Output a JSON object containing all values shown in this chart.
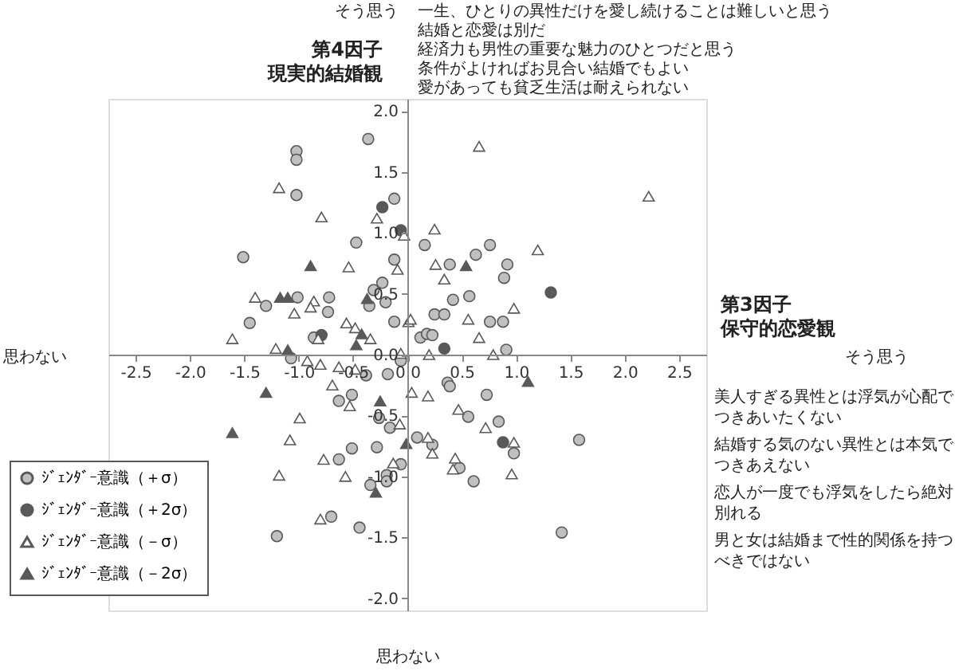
{
  "chart_data": {
    "type": "scatter",
    "xlabel": "保守的恋愛観",
    "ylabel": "現実的結婚観",
    "xlim": [
      -2.75,
      2.75
    ],
    "ylim": [
      -2.1,
      2.1
    ],
    "xticks": [
      {
        "value": -2.5,
        "label": "-2.5"
      },
      {
        "value": -2,
        "label": "-2.0"
      },
      {
        "value": -1.5,
        "label": "-1.5"
      },
      {
        "value": -1,
        "label": "-1.0"
      },
      {
        "value": -0.5,
        "label": "-0.5"
      },
      {
        "value": 0,
        "label": "0.0"
      },
      {
        "value": 0.5,
        "label": "0.5"
      },
      {
        "value": 1,
        "label": "1.0"
      },
      {
        "value": 1.5,
        "label": "1.5"
      },
      {
        "value": 2,
        "label": "2.0"
      },
      {
        "value": 2.5,
        "label": "2.5"
      }
    ],
    "yticks": [
      {
        "value": -2,
        "label": "-2.0"
      },
      {
        "value": -1.5,
        "label": "-1.5"
      },
      {
        "value": -1,
        "label": "-1.0"
      },
      {
        "value": -0.5,
        "label": "-0.5"
      },
      {
        "value": 0,
        "label": "0.0"
      },
      {
        "value": 0.5,
        "label": "0.5"
      },
      {
        "value": 1,
        "label": "1.0"
      },
      {
        "value": 1.5,
        "label": "1.5"
      },
      {
        "value": 2,
        "label": "2.0"
      }
    ],
    "grid": false,
    "legend": "bottom left",
    "annotations": [
      "そう思う",
      "思わない",
      "そう思う",
      "思わない",
      "一生、ひとりの異性だけを愛し続けることは難しいと思う",
      "結婚と恋愛は別だ",
      "経済力も男性の重要な魅力のひとつだと思う",
      "条件がよければお見合い結婚でもよい",
      "愛があっても貧乏生活は耐えられない",
      "美人すぎる異性とは浮気が心配でつきあいたくない",
      "結婚する気のない異性とは本気でつきあえない",
      "恋人が一度でも浮気をしたら絶対別れる",
      "男と女は結婚まで性的関係を持つべきではない",
      "第4因子",
      "第3因子"
    ],
    "series": [
      {
        "name": "ｼﾞｪﾝﾀﾞｰ意識（＋σ）",
        "color": "#c0c0c0",
        "marker": "circle",
        "x": [
          -0.36,
          -1.02,
          -1.02,
          -1.02,
          -0.12,
          -0.47,
          -1.51,
          -0.12,
          -0.23,
          -0.31,
          -1.3,
          -1.01,
          -0.72,
          -0.73,
          -0.35,
          -0.2,
          -1.45,
          -0.12,
          -0.86,
          -1.07,
          -0.38,
          -0.18,
          -0.51,
          -0.63,
          -0.26,
          -0.16,
          -0.06,
          0.16,
          0.76,
          0.63,
          0.39,
          0.92,
          0.89,
          0.57,
          0.42,
          0.25,
          0.34,
          0.76,
          0.88,
          0.12,
          0.18,
          0.23,
          0.91,
          0.37,
          0.39,
          0.73,
          0.56,
          0.84,
          0.98,
          1.58,
          1.42,
          0.61,
          0.48,
          0.09,
          0.23,
          -0.06,
          -0.19,
          -0.19,
          -0.63,
          -0.51,
          -0.28,
          -0.34,
          -0.7,
          -0.44,
          -1.2
        ],
        "values": [
          1.77,
          1.67,
          1.6,
          1.31,
          1.28,
          0.92,
          0.8,
          0.78,
          0.59,
          0.53,
          0.4,
          0.47,
          0.47,
          0.35,
          0.4,
          0.43,
          0.26,
          0.27,
          0.14,
          -0.03,
          -0.17,
          -0.16,
          -0.33,
          -0.38,
          -0.52,
          -0.6,
          -0.05,
          0.9,
          0.9,
          0.82,
          0.74,
          0.74,
          0.63,
          0.48,
          0.45,
          0.33,
          0.33,
          0.27,
          0.27,
          0.14,
          0.17,
          0.16,
          0.04,
          -0.23,
          -0.26,
          -0.33,
          -0.51,
          -0.55,
          -0.81,
          -0.7,
          -1.46,
          -1.04,
          -0.93,
          -0.68,
          -0.74,
          -0.9,
          -0.99,
          -1.04,
          -0.86,
          -0.77,
          -0.76,
          -1.07,
          -1.33,
          -1.42,
          -1.49
        ]
      },
      {
        "name": "ｼﾞｪﾝﾀﾞｰ意識（＋2σ）",
        "color": "#595959",
        "marker": "circle",
        "x": [
          -0.23,
          -0.06,
          -0.79,
          1.32,
          0.34,
          0.88
        ],
        "values": [
          1.21,
          1.02,
          0.16,
          0.51,
          0.05,
          -0.72
        ]
      },
      {
        "name": "ｼﾞｪﾝﾀﾞｰ意識（－σ）",
        "color": "#ffffff",
        "marker": "triangle",
        "x": [
          -1.18,
          0.66,
          2.22,
          -0.79,
          -0.28,
          -0.03,
          -0.54,
          -0.09,
          -1.4,
          -1.04,
          -0.86,
          -0.89,
          -0.56,
          -0.48,
          0.01,
          -1.61,
          -0.82,
          -0.34,
          -1.21,
          -0.92,
          -0.8,
          -0.63,
          -0.48,
          -0.69,
          -0.53,
          -0.99,
          -0.07,
          -1.08,
          0.25,
          1.2,
          0.26,
          0.34,
          0.98,
          0.56,
          0.03,
          0.66,
          0.79,
          0.2,
          -0.06,
          0.04,
          0.19,
          0.47,
          0.72,
          0.98,
          0.96,
          0.44,
          0.42,
          0.19,
          0.23,
          -0.13,
          -0.77,
          -1.18,
          -0.57,
          -0.8
        ],
        "values": [
          1.37,
          1.71,
          1.3,
          1.13,
          1.12,
          0.98,
          0.72,
          0.7,
          0.47,
          0.34,
          0.44,
          0.39,
          0.26,
          0.22,
          0.27,
          0.13,
          0.13,
          0.13,
          0.05,
          -0.05,
          -0.08,
          -0.1,
          -0.12,
          -0.25,
          -0.42,
          -0.52,
          -0.57,
          -0.7,
          1.03,
          0.86,
          0.74,
          0.62,
          0.38,
          0.29,
          0.29,
          0.14,
          0.0,
          0.0,
          0.01,
          -0.31,
          -0.34,
          -0.45,
          -0.6,
          -0.72,
          -0.98,
          -0.85,
          -0.94,
          -0.68,
          -0.81,
          -0.89,
          -0.86,
          -0.99,
          -1.0,
          -1.35
        ]
      },
      {
        "name": "ｼﾞｪﾝﾀﾞｰ意識（－2σ）",
        "color": "#595959",
        "marker": "triangle",
        "x": [
          -0.89,
          -1.17,
          -1.1,
          -0.37,
          0.54,
          -0.42,
          -0.47,
          -1.1,
          -0.25,
          -1.3,
          -1.61,
          1.11,
          -0.01,
          -0.29
        ],
        "values": [
          0.73,
          0.47,
          0.47,
          0.46,
          0.73,
          0.17,
          0.08,
          0.04,
          -0.38,
          -0.31,
          -0.64,
          -0.22,
          -0.73,
          -1.13
        ]
      }
    ]
  }
}
